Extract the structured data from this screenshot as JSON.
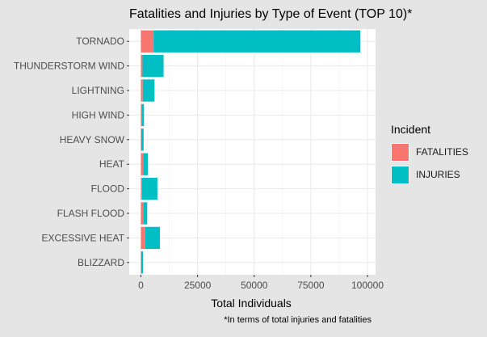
{
  "chart_data": {
    "type": "bar",
    "orientation": "horizontal",
    "stacked": true,
    "title": "Fatalities and Injuries by Type of Event (TOP 10)*",
    "xlabel": "Total Individuals",
    "ylabel": "",
    "caption": "*In terms of total injuries and fatalities",
    "xlim": [
      0,
      100000
    ],
    "xticks": [
      0,
      25000,
      50000,
      75000,
      100000
    ],
    "xtick_labels": [
      "0",
      "25000",
      "50000",
      "75000",
      "100000"
    ],
    "categories": [
      "TORNADO",
      "THUNDERSTORM WIND",
      "LIGHTNING",
      "HIGH WIND",
      "HEAVY SNOW",
      "HEAT",
      "FLOOD",
      "FLASH FLOOD",
      "EXCESSIVE HEAT",
      "BLIZZARD"
    ],
    "series": [
      {
        "name": "FATALITIES",
        "color": "#F8766D",
        "values": [
          5600,
          700,
          800,
          250,
          130,
          940,
          470,
          980,
          1900,
          100
        ]
      },
      {
        "name": "INJURIES",
        "color": "#00BFC4",
        "values": [
          91300,
          9300,
          5200,
          1100,
          1050,
          2100,
          6800,
          1800,
          6500,
          800
        ]
      }
    ],
    "legend": {
      "title": "Incident",
      "position": "right"
    },
    "grid": true,
    "panel_color": "#ffffff",
    "background_color": "#e5e5e5"
  }
}
